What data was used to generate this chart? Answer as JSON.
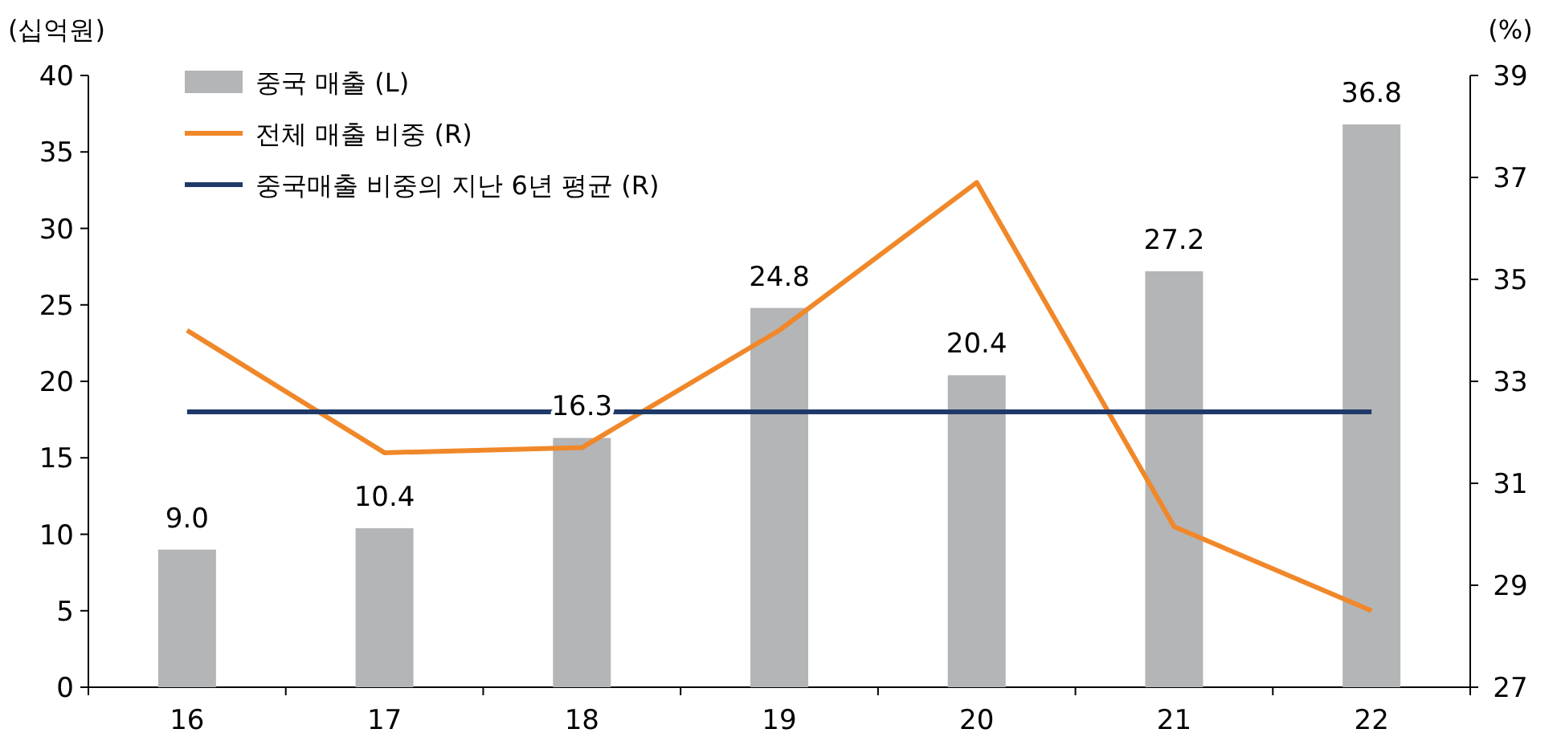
{
  "chart_data": {
    "type": "bar",
    "ylabel": "(십억원)",
    "y2label": "(%)",
    "categories": [
      "16",
      "17",
      "18",
      "19",
      "20",
      "21",
      "22"
    ],
    "series": [
      {
        "name": "중국 매출 (L)",
        "color": "#b4b5b7",
        "values": [
          9.0,
          10.4,
          16.3,
          24.8,
          20.4,
          27.2,
          36.8
        ],
        "value_labels": [
          "9.0",
          "10.4",
          "16.3",
          "24.8",
          "20.4",
          "27.2",
          "36.8"
        ]
      },
      {
        "name": "전체 매출 비중 (R)",
        "type": "line",
        "axis": "y2",
        "color": "#f0882a",
        "values": [
          34.0,
          31.6,
          31.7,
          34.0,
          36.9,
          30.15,
          28.5
        ]
      },
      {
        "name": "중국매출 비중의 지난 6년 평균 (R)",
        "type": "line",
        "axis": "y2",
        "color": "#1f3a68",
        "values": [
          32.4,
          32.4,
          32.4,
          32.4,
          32.4,
          32.4,
          32.4
        ]
      }
    ],
    "ylim": [
      0,
      40
    ],
    "yticks": [
      0,
      5,
      10,
      15,
      20,
      25,
      30,
      35,
      40
    ],
    "y2lim": [
      27,
      39
    ],
    "y2ticks": [
      27,
      29,
      31,
      33,
      35,
      37,
      39
    ],
    "legend": "top left",
    "grid": false
  }
}
